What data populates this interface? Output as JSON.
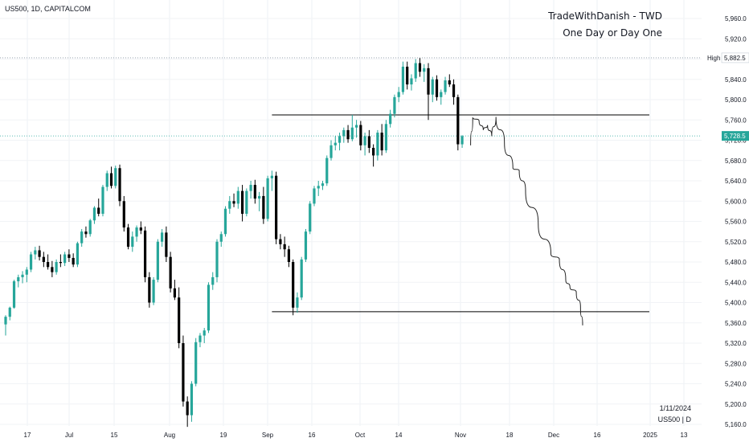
{
  "header": {
    "symbol_line": "US500, 1D, CAPITALCOM",
    "brand_title": "TradeWithDanish - TWD",
    "brand_subtitle": "One Day or Day One"
  },
  "footer": {
    "date": "1/11/2024",
    "symbol_interval": "US500 | D"
  },
  "labels": {
    "high_label": "High",
    "high_value": "5,882.5",
    "last_price": "5,728.5"
  },
  "colors": {
    "up": "#26a69a",
    "down": "#000000",
    "grid": "#cfd8dc",
    "dotted_high": "#8a9aa6",
    "dotted_last": "#26a69a",
    "price_tag_bg": "#26a69a"
  },
  "chart_data": {
    "type": "candlestick",
    "yaxis": {
      "ticks": [
        "5,960.0",
        "5,920.0",
        "5,880.0",
        "5,840.0",
        "5,800.0",
        "5,760.0",
        "5,720.0",
        "5,680.0",
        "5,640.0",
        "5,600.0",
        "5,560.0",
        "5,520.0",
        "5,480.0",
        "5,440.0",
        "5,400.0",
        "5,360.0",
        "5,320.0",
        "5,280.0",
        "5,240.0",
        "5,200.0",
        "5,160.0"
      ],
      "range": [
        5145,
        5980
      ]
    },
    "xaxis": {
      "ticks": [
        "17",
        "Jul",
        "15",
        "Aug",
        "19",
        "Sep",
        "16",
        "Oct",
        "14",
        "Nov",
        "18",
        "Dec",
        "16",
        "2025",
        "13"
      ]
    },
    "high_price": 5882.5,
    "last_price": 5728.5,
    "series": [
      {
        "o": 5357,
        "h": 5375,
        "l": 5335,
        "c": 5372
      },
      {
        "o": 5372,
        "h": 5392,
        "l": 5365,
        "c": 5390
      },
      {
        "o": 5390,
        "h": 5445,
        "l": 5388,
        "c": 5442
      },
      {
        "o": 5442,
        "h": 5455,
        "l": 5430,
        "c": 5450
      },
      {
        "o": 5450,
        "h": 5462,
        "l": 5438,
        "c": 5455
      },
      {
        "o": 5455,
        "h": 5470,
        "l": 5440,
        "c": 5465
      },
      {
        "o": 5465,
        "h": 5500,
        "l": 5460,
        "c": 5495
      },
      {
        "o": 5495,
        "h": 5510,
        "l": 5485,
        "c": 5503
      },
      {
        "o": 5503,
        "h": 5512,
        "l": 5483,
        "c": 5490
      },
      {
        "o": 5490,
        "h": 5500,
        "l": 5470,
        "c": 5480
      },
      {
        "o": 5480,
        "h": 5495,
        "l": 5465,
        "c": 5470
      },
      {
        "o": 5470,
        "h": 5482,
        "l": 5450,
        "c": 5460
      },
      {
        "o": 5460,
        "h": 5485,
        "l": 5455,
        "c": 5480
      },
      {
        "o": 5480,
        "h": 5495,
        "l": 5470,
        "c": 5478
      },
      {
        "o": 5478,
        "h": 5500,
        "l": 5472,
        "c": 5495
      },
      {
        "o": 5495,
        "h": 5505,
        "l": 5480,
        "c": 5488
      },
      {
        "o": 5488,
        "h": 5497,
        "l": 5470,
        "c": 5475
      },
      {
        "o": 5475,
        "h": 5520,
        "l": 5470,
        "c": 5517
      },
      {
        "o": 5517,
        "h": 5545,
        "l": 5510,
        "c": 5540
      },
      {
        "o": 5540,
        "h": 5550,
        "l": 5528,
        "c": 5535
      },
      {
        "o": 5535,
        "h": 5565,
        "l": 5530,
        "c": 5562
      },
      {
        "o": 5562,
        "h": 5590,
        "l": 5555,
        "c": 5587
      },
      {
        "o": 5587,
        "h": 5605,
        "l": 5570,
        "c": 5575
      },
      {
        "o": 5575,
        "h": 5632,
        "l": 5570,
        "c": 5628
      },
      {
        "o": 5628,
        "h": 5660,
        "l": 5620,
        "c": 5655
      },
      {
        "o": 5655,
        "h": 5668,
        "l": 5625,
        "c": 5630
      },
      {
        "o": 5630,
        "h": 5670,
        "l": 5625,
        "c": 5665
      },
      {
        "o": 5665,
        "h": 5672,
        "l": 5590,
        "c": 5600
      },
      {
        "o": 5600,
        "h": 5610,
        "l": 5540,
        "c": 5548
      },
      {
        "o": 5548,
        "h": 5555,
        "l": 5505,
        "c": 5510
      },
      {
        "o": 5510,
        "h": 5540,
        "l": 5500,
        "c": 5530
      },
      {
        "o": 5530,
        "h": 5552,
        "l": 5520,
        "c": 5548
      },
      {
        "o": 5548,
        "h": 5560,
        "l": 5535,
        "c": 5542
      },
      {
        "o": 5542,
        "h": 5550,
        "l": 5440,
        "c": 5450
      },
      {
        "o": 5450,
        "h": 5460,
        "l": 5390,
        "c": 5400
      },
      {
        "o": 5400,
        "h": 5450,
        "l": 5395,
        "c": 5445
      },
      {
        "o": 5445,
        "h": 5525,
        "l": 5440,
        "c": 5520
      },
      {
        "o": 5520,
        "h": 5545,
        "l": 5510,
        "c": 5538
      },
      {
        "o": 5538,
        "h": 5550,
        "l": 5480,
        "c": 5490
      },
      {
        "o": 5490,
        "h": 5500,
        "l": 5420,
        "c": 5428
      },
      {
        "o": 5428,
        "h": 5445,
        "l": 5405,
        "c": 5410
      },
      {
        "o": 5410,
        "h": 5430,
        "l": 5310,
        "c": 5320
      },
      {
        "o": 5320,
        "h": 5335,
        "l": 5195,
        "c": 5205
      },
      {
        "o": 5205,
        "h": 5215,
        "l": 5155,
        "c": 5178
      },
      {
        "o": 5178,
        "h": 5245,
        "l": 5165,
        "c": 5240
      },
      {
        "o": 5240,
        "h": 5330,
        "l": 5235,
        "c": 5322
      },
      {
        "o": 5322,
        "h": 5340,
        "l": 5312,
        "c": 5335
      },
      {
        "o": 5335,
        "h": 5350,
        "l": 5320,
        "c": 5345
      },
      {
        "o": 5345,
        "h": 5440,
        "l": 5340,
        "c": 5435
      },
      {
        "o": 5435,
        "h": 5460,
        "l": 5425,
        "c": 5450
      },
      {
        "o": 5450,
        "h": 5525,
        "l": 5440,
        "c": 5520
      },
      {
        "o": 5520,
        "h": 5540,
        "l": 5510,
        "c": 5535
      },
      {
        "o": 5535,
        "h": 5590,
        "l": 5530,
        "c": 5585
      },
      {
        "o": 5585,
        "h": 5610,
        "l": 5575,
        "c": 5600
      },
      {
        "o": 5600,
        "h": 5615,
        "l": 5588,
        "c": 5595
      },
      {
        "o": 5595,
        "h": 5628,
        "l": 5585,
        "c": 5620
      },
      {
        "o": 5620,
        "h": 5632,
        "l": 5560,
        "c": 5575
      },
      {
        "o": 5575,
        "h": 5625,
        "l": 5570,
        "c": 5620
      },
      {
        "o": 5620,
        "h": 5640,
        "l": 5605,
        "c": 5632
      },
      {
        "o": 5632,
        "h": 5642,
        "l": 5595,
        "c": 5605
      },
      {
        "o": 5605,
        "h": 5618,
        "l": 5580,
        "c": 5610
      },
      {
        "o": 5610,
        "h": 5628,
        "l": 5555,
        "c": 5565
      },
      {
        "o": 5565,
        "h": 5650,
        "l": 5560,
        "c": 5645
      },
      {
        "o": 5645,
        "h": 5660,
        "l": 5620,
        "c": 5650
      },
      {
        "o": 5650,
        "h": 5658,
        "l": 5515,
        "c": 5525
      },
      {
        "o": 5525,
        "h": 5535,
        "l": 5505,
        "c": 5515
      },
      {
        "o": 5515,
        "h": 5530,
        "l": 5490,
        "c": 5505
      },
      {
        "o": 5505,
        "h": 5512,
        "l": 5470,
        "c": 5480
      },
      {
        "o": 5480,
        "h": 5485,
        "l": 5375,
        "c": 5390
      },
      {
        "o": 5390,
        "h": 5420,
        "l": 5380,
        "c": 5410
      },
      {
        "o": 5410,
        "h": 5490,
        "l": 5405,
        "c": 5485
      },
      {
        "o": 5485,
        "h": 5545,
        "l": 5480,
        "c": 5540
      },
      {
        "o": 5540,
        "h": 5600,
        "l": 5535,
        "c": 5595
      },
      {
        "o": 5595,
        "h": 5630,
        "l": 5590,
        "c": 5625
      },
      {
        "o": 5625,
        "h": 5640,
        "l": 5610,
        "c": 5630
      },
      {
        "o": 5630,
        "h": 5640,
        "l": 5622,
        "c": 5635
      },
      {
        "o": 5635,
        "h": 5690,
        "l": 5630,
        "c": 5685
      },
      {
        "o": 5685,
        "h": 5720,
        "l": 5680,
        "c": 5710
      },
      {
        "o": 5710,
        "h": 5728,
        "l": 5700,
        "c": 5715
      },
      {
        "o": 5715,
        "h": 5735,
        "l": 5700,
        "c": 5728
      },
      {
        "o": 5728,
        "h": 5745,
        "l": 5715,
        "c": 5740
      },
      {
        "o": 5740,
        "h": 5750,
        "l": 5715,
        "c": 5722
      },
      {
        "o": 5722,
        "h": 5770,
        "l": 5718,
        "c": 5745
      },
      {
        "o": 5745,
        "h": 5760,
        "l": 5725,
        "c": 5750
      },
      {
        "o": 5750,
        "h": 5758,
        "l": 5700,
        "c": 5710
      },
      {
        "o": 5710,
        "h": 5735,
        "l": 5690,
        "c": 5728
      },
      {
        "o": 5728,
        "h": 5740,
        "l": 5695,
        "c": 5705
      },
      {
        "o": 5705,
        "h": 5712,
        "l": 5668,
        "c": 5690
      },
      {
        "o": 5690,
        "h": 5740,
        "l": 5680,
        "c": 5735
      },
      {
        "o": 5735,
        "h": 5752,
        "l": 5690,
        "c": 5700
      },
      {
        "o": 5700,
        "h": 5760,
        "l": 5695,
        "c": 5752
      },
      {
        "o": 5752,
        "h": 5780,
        "l": 5745,
        "c": 5772
      },
      {
        "o": 5772,
        "h": 5810,
        "l": 5765,
        "c": 5805
      },
      {
        "o": 5805,
        "h": 5825,
        "l": 5795,
        "c": 5815
      },
      {
        "o": 5815,
        "h": 5875,
        "l": 5810,
        "c": 5865
      },
      {
        "o": 5865,
        "h": 5875,
        "l": 5820,
        "c": 5830
      },
      {
        "o": 5830,
        "h": 5850,
        "l": 5818,
        "c": 5842
      },
      {
        "o": 5842,
        "h": 5880,
        "l": 5835,
        "c": 5872
      },
      {
        "o": 5872,
        "h": 5882,
        "l": 5845,
        "c": 5855
      },
      {
        "o": 5855,
        "h": 5870,
        "l": 5835,
        "c": 5862
      },
      {
        "o": 5862,
        "h": 5872,
        "l": 5760,
        "c": 5810
      },
      {
        "o": 5810,
        "h": 5845,
        "l": 5795,
        "c": 5840
      },
      {
        "o": 5840,
        "h": 5848,
        "l": 5798,
        "c": 5805
      },
      {
        "o": 5805,
        "h": 5820,
        "l": 5790,
        "c": 5815
      },
      {
        "o": 5815,
        "h": 5845,
        "l": 5810,
        "c": 5838
      },
      {
        "o": 5838,
        "h": 5850,
        "l": 5825,
        "c": 5830
      },
      {
        "o": 5830,
        "h": 5840,
        "l": 5790,
        "c": 5805
      },
      {
        "o": 5805,
        "h": 5810,
        "l": 5700,
        "c": 5712
      },
      {
        "o": 5712,
        "h": 5730,
        "l": 5705,
        "c": 5728
      }
    ],
    "horizontal_lines": [
      {
        "price": 5770,
        "from_index": 63,
        "to_extends": true
      },
      {
        "price": 5382,
        "from_index": 63,
        "to_extends": true
      }
    ],
    "projection_path": [
      {
        "i": 110,
        "p": 5710
      },
      {
        "i": 110.5,
        "p": 5765
      },
      {
        "i": 112,
        "p": 5758
      },
      {
        "i": 113,
        "p": 5740
      },
      {
        "i": 114,
        "p": 5750
      },
      {
        "i": 115,
        "p": 5728
      },
      {
        "i": 116,
        "p": 5766
      },
      {
        "i": 118,
        "p": 5715
      },
      {
        "i": 120,
        "p": 5665
      },
      {
        "i": 121.5,
        "p": 5660
      },
      {
        "i": 123,
        "p": 5620
      },
      {
        "i": 126,
        "p": 5555
      },
      {
        "i": 129,
        "p": 5495
      },
      {
        "i": 131,
        "p": 5485
      },
      {
        "i": 132.5,
        "p": 5445
      },
      {
        "i": 133.5,
        "p": 5430
      },
      {
        "i": 135,
        "p": 5420
      },
      {
        "i": 136,
        "p": 5390
      },
      {
        "i": 136.5,
        "p": 5355
      }
    ]
  }
}
